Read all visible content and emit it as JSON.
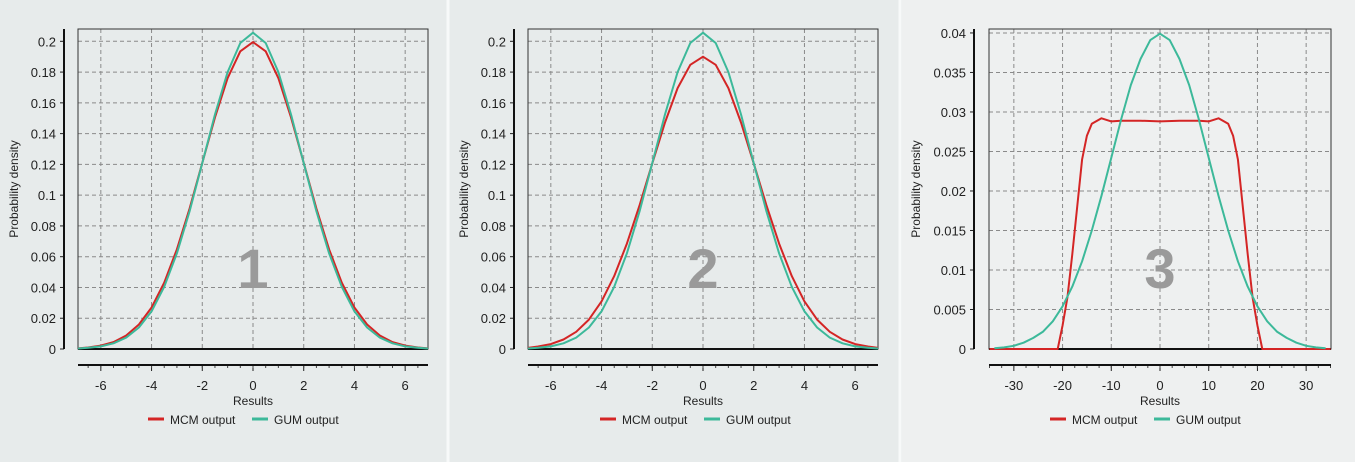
{
  "colors": {
    "mcm": "#d42525",
    "gum": "#3cb99a",
    "background": "#e7ebeb"
  },
  "chart_data": [
    {
      "type": "line",
      "panel_label": "1",
      "xlabel": "Results",
      "ylabel": "Probability density",
      "xlim": [
        -6.9,
        6.9
      ],
      "ylim": [
        0,
        0.208
      ],
      "xticks": [
        -6,
        -4,
        -2,
        0,
        2,
        4,
        6
      ],
      "yticks": [
        0,
        0.02,
        0.04,
        0.06,
        0.08,
        0.1,
        0.12,
        0.14,
        0.16,
        0.18,
        0.2
      ],
      "grid": true,
      "legend": "bottom",
      "x": [
        -7,
        -6.5,
        -6,
        -5.5,
        -5,
        -4.5,
        -4,
        -3.5,
        -3,
        -2.5,
        -2,
        -1.5,
        -1,
        -0.5,
        0,
        0.5,
        1,
        1.5,
        2,
        2.5,
        3,
        3.5,
        4,
        4.5,
        5,
        5.5,
        6,
        6.5,
        7
      ],
      "series": [
        {
          "name": "MCM output",
          "values": [
            0.0004,
            0.001,
            0.0022,
            0.0045,
            0.0088,
            0.0159,
            0.027,
            0.0431,
            0.0648,
            0.0913,
            0.121,
            0.1506,
            0.176,
            0.1935,
            0.1995,
            0.1935,
            0.176,
            0.1506,
            0.121,
            0.0913,
            0.0648,
            0.0431,
            0.027,
            0.0159,
            0.0088,
            0.0045,
            0.0022,
            0.001,
            0.0004
          ]
        },
        {
          "name": "GUM output",
          "values": [
            0.0003,
            0.00075,
            0.0017,
            0.0037,
            0.0074,
            0.014,
            0.0245,
            0.0404,
            0.0622,
            0.0896,
            0.1209,
            0.1525,
            0.18,
            0.1989,
            0.2056,
            0.1989,
            0.18,
            0.1525,
            0.1209,
            0.0896,
            0.0622,
            0.0404,
            0.0245,
            0.014,
            0.0074,
            0.0037,
            0.0017,
            0.00075,
            0.0003
          ]
        }
      ]
    },
    {
      "type": "line",
      "panel_label": "2",
      "xlabel": "Results",
      "ylabel": "Probability density",
      "xlim": [
        -6.9,
        6.9
      ],
      "ylim": [
        0,
        0.208
      ],
      "xticks": [
        -6,
        -4,
        -2,
        0,
        2,
        4,
        6
      ],
      "yticks": [
        0,
        0.02,
        0.04,
        0.06,
        0.08,
        0.1,
        0.12,
        0.14,
        0.16,
        0.18,
        0.2
      ],
      "grid": true,
      "legend": "bottom",
      "x": [
        -7,
        -6.5,
        -6,
        -5.5,
        -5,
        -4.5,
        -4,
        -3.5,
        -3,
        -2.5,
        -2,
        -1.5,
        -1,
        -0.5,
        0,
        0.5,
        1,
        1.5,
        2,
        2.5,
        3,
        3.5,
        4,
        4.5,
        5,
        5.5,
        6,
        6.5,
        7
      ],
      "series": [
        {
          "name": "MCM output",
          "values": [
            0.0007,
            0.0016,
            0.0032,
            0.0062,
            0.0112,
            0.0191,
            0.031,
            0.0474,
            0.0685,
            0.0935,
            0.1207,
            0.1472,
            0.1696,
            0.1847,
            0.19,
            0.1847,
            0.1696,
            0.1472,
            0.1207,
            0.0935,
            0.0685,
            0.0474,
            0.031,
            0.0191,
            0.0112,
            0.0062,
            0.0032,
            0.0016,
            0.0007
          ]
        },
        {
          "name": "GUM output",
          "values": [
            0.0003,
            0.00075,
            0.0017,
            0.0037,
            0.0074,
            0.014,
            0.0245,
            0.0404,
            0.0622,
            0.0896,
            0.1209,
            0.1525,
            0.18,
            0.1989,
            0.2056,
            0.1989,
            0.18,
            0.1525,
            0.1209,
            0.0896,
            0.0622,
            0.0404,
            0.0245,
            0.014,
            0.0074,
            0.0037,
            0.0017,
            0.00075,
            0.0003
          ]
        }
      ]
    },
    {
      "type": "line",
      "panel_label": "3",
      "xlabel": "Results",
      "ylabel": "Probability density",
      "xlim": [
        -35.1,
        35.1
      ],
      "ylim": [
        0,
        0.0405
      ],
      "xticks": [
        -30,
        -20,
        -10,
        0,
        10,
        20,
        30
      ],
      "yticks": [
        0,
        0.005,
        0.01,
        0.015,
        0.02,
        0.025,
        0.03,
        0.035,
        0.04
      ],
      "grid": true,
      "legend": "bottom",
      "series": [
        {
          "name": "MCM output",
          "x": [
            -35,
            -22,
            -21,
            -20,
            -19,
            -18,
            -17,
            -16,
            -15,
            -14,
            -12,
            -10,
            -8,
            -4,
            0,
            4,
            8,
            10,
            12,
            14,
            15,
            16,
            17,
            18,
            19,
            20,
            21,
            22,
            35
          ],
          "values": [
            0,
            0,
            0,
            0.003,
            0.0065,
            0.012,
            0.018,
            0.024,
            0.027,
            0.0285,
            0.0292,
            0.0288,
            0.0289,
            0.0289,
            0.0288,
            0.0289,
            0.0289,
            0.0288,
            0.0292,
            0.0285,
            0.027,
            0.024,
            0.018,
            0.012,
            0.0065,
            0.003,
            0,
            0,
            0
          ]
        },
        {
          "name": "GUM output",
          "x": [
            -34,
            -32,
            -30,
            -28,
            -26,
            -24,
            -22,
            -20,
            -18,
            -16,
            -14,
            -12,
            -10,
            -8,
            -6,
            -4,
            -2,
            0,
            2,
            4,
            6,
            8,
            10,
            12,
            14,
            16,
            18,
            20,
            22,
            24,
            26,
            28,
            30,
            32,
            34
          ],
          "values": [
            0.0001,
            0.0002,
            0.0004,
            0.0008,
            0.0014,
            0.0022,
            0.0035,
            0.0054,
            0.0079,
            0.0111,
            0.015,
            0.0194,
            0.0242,
            0.029,
            0.0334,
            0.0367,
            0.0391,
            0.0399,
            0.0391,
            0.0367,
            0.0334,
            0.029,
            0.0242,
            0.0194,
            0.015,
            0.0111,
            0.0079,
            0.0054,
            0.0035,
            0.0022,
            0.0014,
            0.0008,
            0.0004,
            0.0002,
            0.0001
          ]
        }
      ]
    }
  ]
}
